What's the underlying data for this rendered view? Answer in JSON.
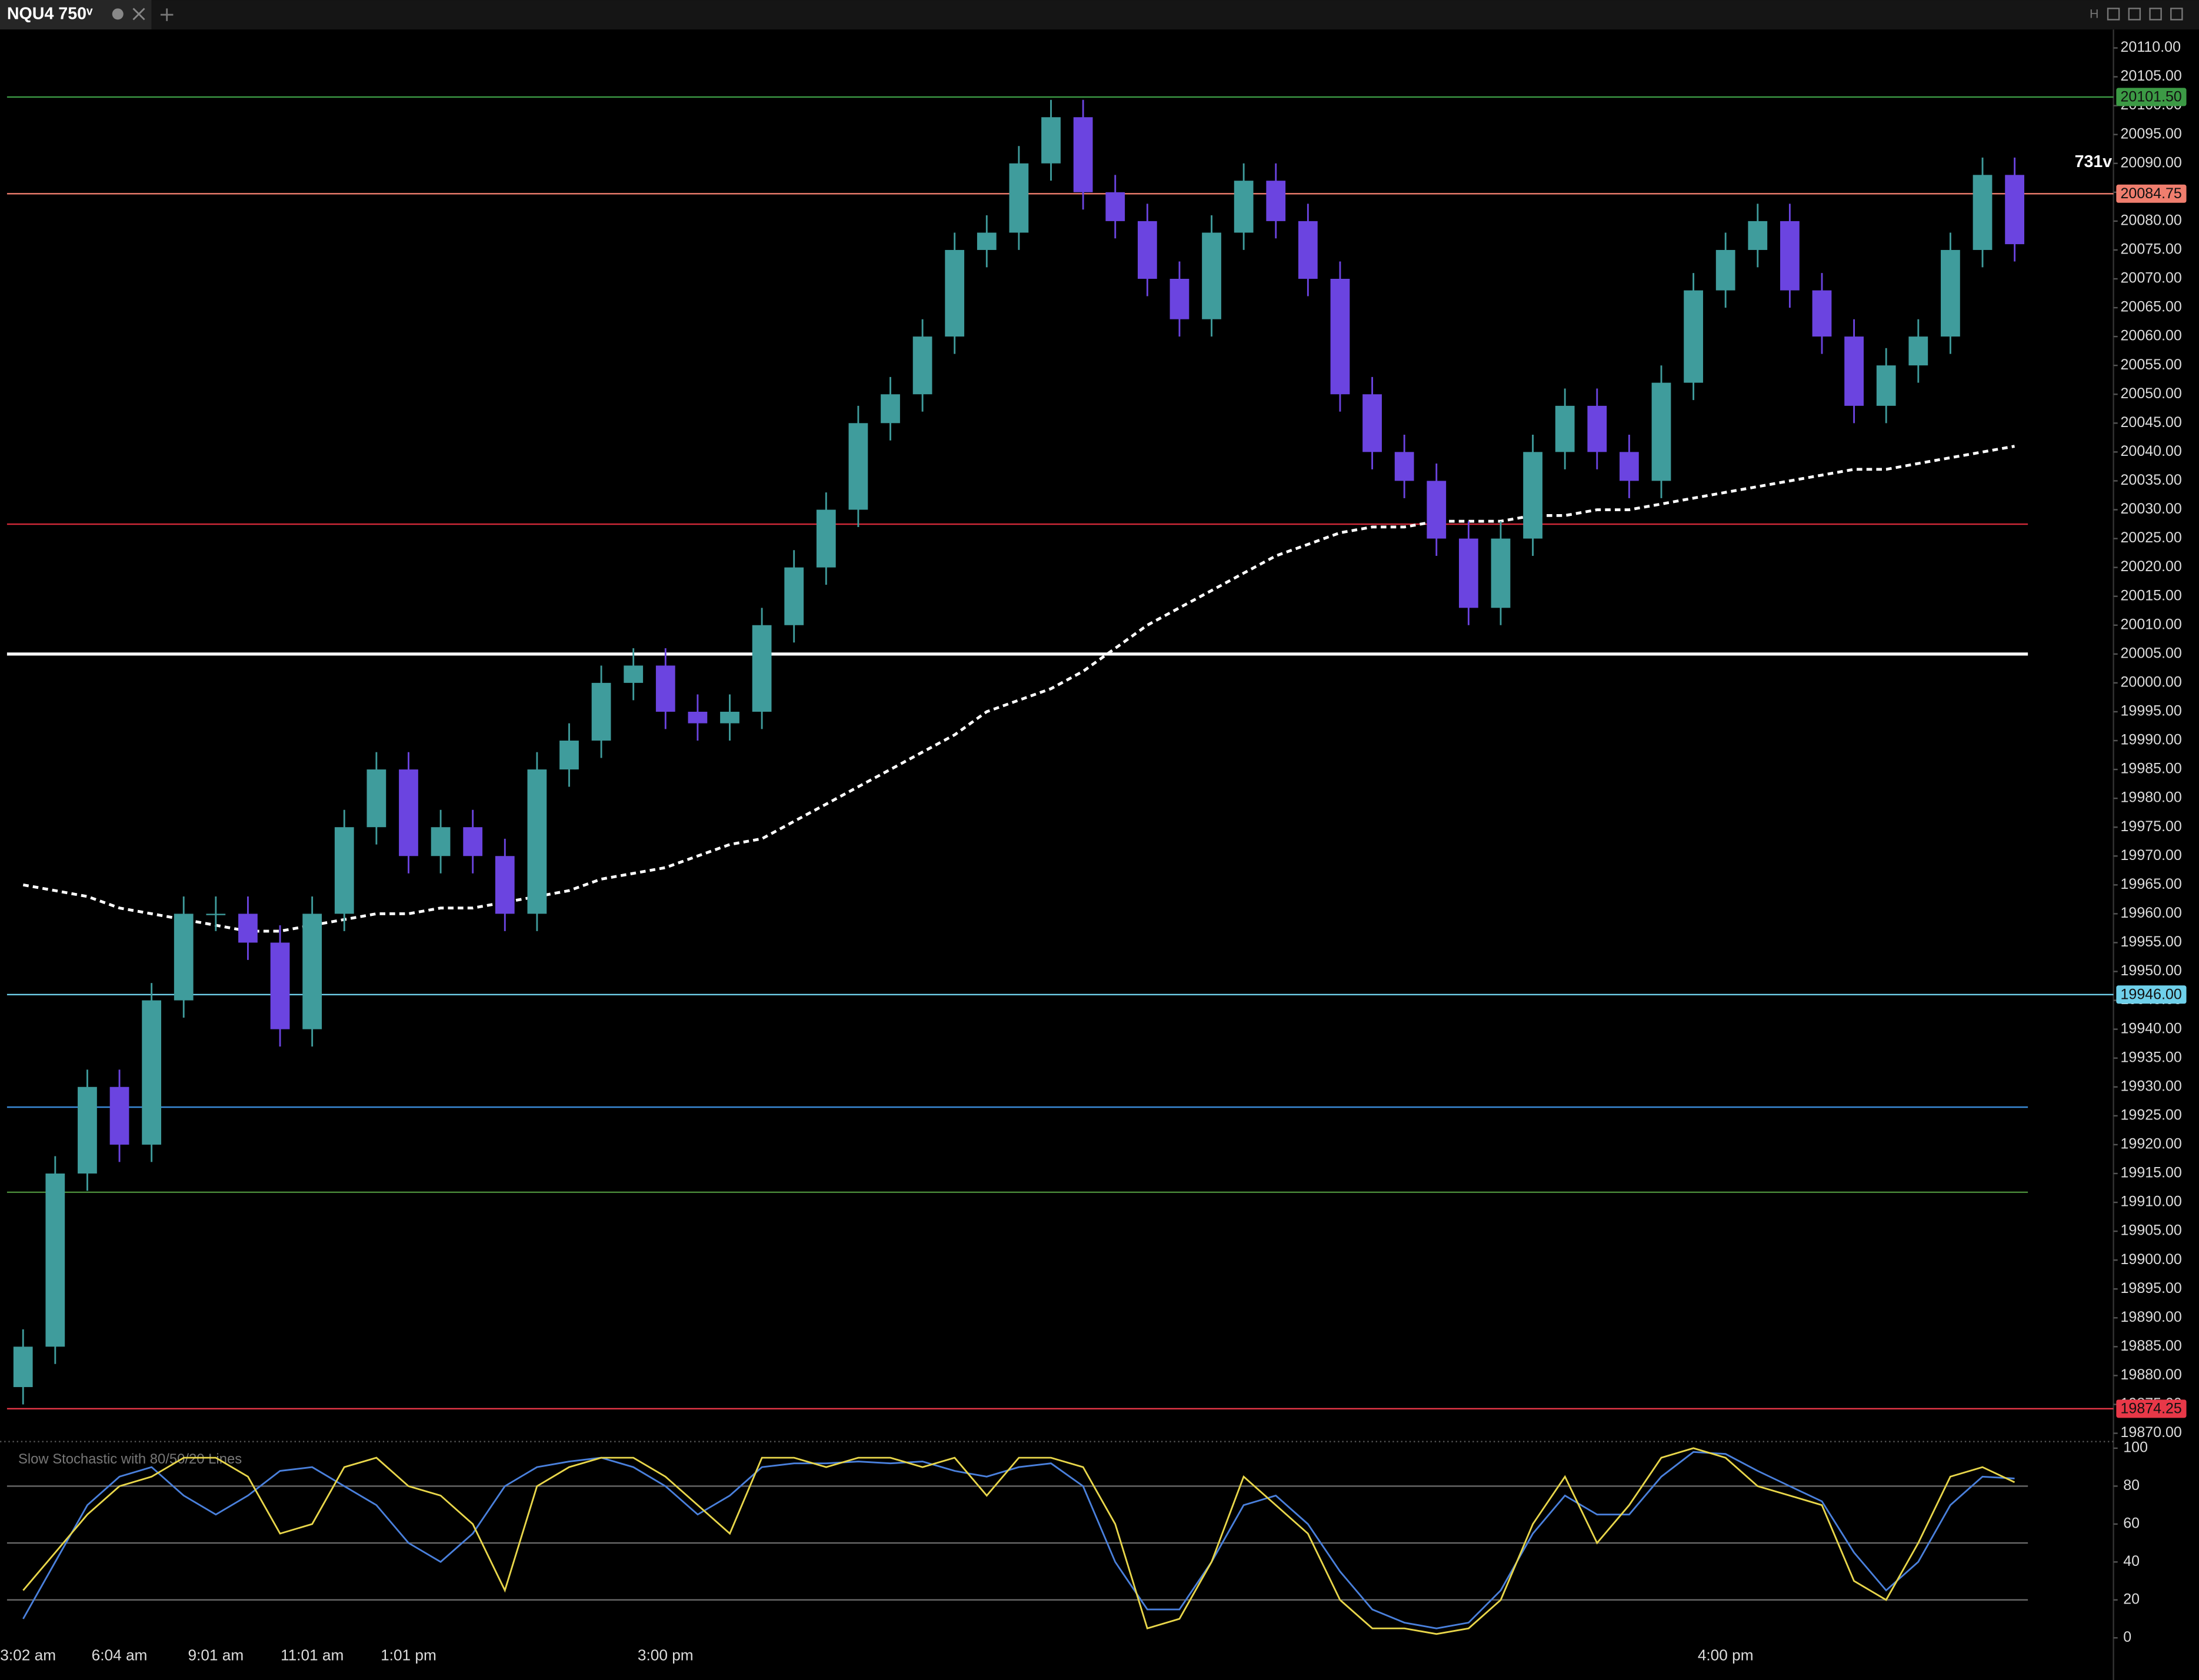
{
  "chart_data": [
    {
      "type": "candlestick",
      "title": "NQU4 750ᵛ",
      "annotation": "731v",
      "up_color": "#3f9c9c",
      "down_color": "#6b44e0",
      "candles": {
        "open": [
          19878,
          19885,
          19915,
          19930,
          19920,
          19945,
          19960,
          19960,
          19955,
          19940,
          19960,
          19975,
          19985,
          19970,
          19975,
          19970,
          19960,
          19985,
          19990,
          20000,
          20003,
          19995,
          19993,
          19995,
          20010,
          20020,
          20030,
          20045,
          20050,
          20060,
          20075,
          20078,
          20090,
          20098,
          20085,
          20080,
          20070,
          20063,
          20078,
          20087,
          20080,
          20070,
          20050,
          20040,
          20035,
          20025,
          20013,
          20025,
          20040,
          20048,
          20040,
          20035,
          20052,
          20068,
          20075,
          20080,
          20068,
          20060,
          20048,
          20055,
          20060,
          20075,
          20088
        ],
        "high": [
          19888,
          19918,
          19933,
          19933,
          19948,
          19963,
          19963,
          19963,
          19958,
          19963,
          19978,
          19988,
          19988,
          19978,
          19978,
          19973,
          19988,
          19993,
          20003,
          20006,
          20006,
          19998,
          19998,
          20013,
          20023,
          20033,
          20048,
          20053,
          20063,
          20078,
          20081,
          20093,
          20101,
          20101,
          20088,
          20083,
          20073,
          20081,
          20090,
          20090,
          20083,
          20073,
          20053,
          20043,
          20038,
          20028,
          20028,
          20043,
          20051,
          20051,
          20043,
          20055,
          20071,
          20078,
          20083,
          20083,
          20071,
          20063,
          20058,
          20063,
          20078,
          20091,
          20091
        ],
        "low": [
          19875,
          19882,
          19912,
          19917,
          19917,
          19942,
          19957,
          19952,
          19937,
          19937,
          19957,
          19972,
          19967,
          19967,
          19967,
          19957,
          19957,
          19982,
          19987,
          19997,
          19992,
          19990,
          19990,
          19992,
          20007,
          20017,
          20027,
          20042,
          20047,
          20057,
          20072,
          20075,
          20087,
          20082,
          20077,
          20067,
          20060,
          20060,
          20075,
          20077,
          20067,
          20047,
          20037,
          20032,
          20022,
          20010,
          20010,
          20022,
          20037,
          20037,
          20032,
          20032,
          20049,
          20065,
          20072,
          20065,
          20057,
          20045,
          20045,
          20052,
          20057,
          20072,
          20073
        ],
        "close": [
          19885,
          19915,
          19930,
          19920,
          19945,
          19960,
          19960,
          19955,
          19940,
          19960,
          19975,
          19985,
          19970,
          19975,
          19970,
          19960,
          19985,
          19990,
          20000,
          20003,
          19995,
          19993,
          19995,
          20010,
          20020,
          20030,
          20045,
          20050,
          20060,
          20075,
          20078,
          20090,
          20098,
          20085,
          20080,
          20070,
          20063,
          20078,
          20087,
          20080,
          20070,
          20050,
          20040,
          20035,
          20025,
          20013,
          20025,
          20040,
          20048,
          20040,
          20035,
          20052,
          20068,
          20075,
          20080,
          20068,
          20060,
          20048,
          20055,
          20060,
          20075,
          20088,
          20076
        ]
      },
      "overlays": [
        {
          "color": "#ffffff",
          "dashed": true,
          "values": [
            19965,
            19964,
            19963,
            19961,
            19960,
            19959,
            19958,
            19957,
            19957,
            19958,
            19959,
            19960,
            19960,
            19961,
            19961,
            19962,
            19963,
            19964,
            19966,
            19967,
            19968,
            19970,
            19972,
            19973,
            19976,
            19979,
            19982,
            19985,
            19988,
            19991,
            19995,
            19997,
            19999,
            20002,
            20006,
            20010,
            20013,
            20016,
            20019,
            20022,
            20024,
            20026,
            20027,
            20027,
            20028,
            20028,
            20028,
            20029,
            20029,
            20030,
            20030,
            20031,
            20032,
            20033,
            20034,
            20035,
            20036,
            20037,
            20037,
            20038,
            20039,
            20040,
            20041
          ]
        }
      ],
      "levels": [
        {
          "value": 20101.5,
          "color": "#3c9a45",
          "label": "20101.50"
        },
        {
          "value": 20084.75,
          "color": "#f07e6e",
          "label": "20084.75"
        },
        {
          "value": 20027.5,
          "color": "#d42a3a"
        },
        {
          "value": 20005,
          "color": "#ffffff",
          "thick": true
        },
        {
          "value": 19946,
          "color": "#6fd0ea",
          "label": "19946.00"
        },
        {
          "value": 19926.5,
          "color": "#3a8ad8"
        },
        {
          "value": 19911.75,
          "color": "#4a8a3a"
        },
        {
          "value": 19874.25,
          "color": "#e83848",
          "label": "19874.25"
        }
      ],
      "ylim": [
        19868.8,
        20113.2
      ],
      "yticks": [
        {
          "value": 19870,
          "label": "19870.00"
        },
        {
          "value": 19875,
          "label": "19875.00"
        },
        {
          "value": 19880,
          "label": "19880.00"
        },
        {
          "value": 19885,
          "label": "19885.00"
        },
        {
          "value": 19890,
          "label": "19890.00"
        },
        {
          "value": 19895,
          "label": "19895.00"
        },
        {
          "value": 19900,
          "label": "19900.00"
        },
        {
          "value": 19905,
          "label": "19905.00"
        },
        {
          "value": 19910,
          "label": "19910.00"
        },
        {
          "value": 19915,
          "label": "19915.00"
        },
        {
          "value": 19920,
          "label": "19920.00"
        },
        {
          "value": 19925,
          "label": "19925.00"
        },
        {
          "value": 19930,
          "label": "19930.00"
        },
        {
          "value": 19935,
          "label": "19935.00"
        },
        {
          "value": 19940,
          "label": "19940.00"
        },
        {
          "value": 19945,
          "label": "19945.00"
        },
        {
          "value": 19950,
          "label": "19950.00"
        },
        {
          "value": 19955,
          "label": "19955.00"
        },
        {
          "value": 19960,
          "label": "19960.00"
        },
        {
          "value": 19965,
          "label": "19965.00"
        },
        {
          "value": 19970,
          "label": "19970.00"
        },
        {
          "value": 19975,
          "label": "19975.00"
        },
        {
          "value": 19980,
          "label": "19980.00"
        },
        {
          "value": 19985,
          "label": "19985.00"
        },
        {
          "value": 19990,
          "label": "19990.00"
        },
        {
          "value": 19995,
          "label": "19995.00"
        },
        {
          "value": 20000,
          "label": "20000.00"
        },
        {
          "value": 20005,
          "label": "20005.00"
        },
        {
          "value": 20010,
          "label": "20010.00"
        },
        {
          "value": 20015,
          "label": "20015.00"
        },
        {
          "value": 20020,
          "label": "20020.00"
        },
        {
          "value": 20025,
          "label": "20025.00"
        },
        {
          "value": 20030,
          "label": "20030.00"
        },
        {
          "value": 20035,
          "label": "20035.00"
        },
        {
          "value": 20040,
          "label": "20040.00"
        },
        {
          "value": 20045,
          "label": "20045.00"
        },
        {
          "value": 20050,
          "label": "20050.00"
        },
        {
          "value": 20055,
          "label": "20055.00"
        },
        {
          "value": 20060,
          "label": "20060.00"
        },
        {
          "value": 20065,
          "label": "20065.00"
        },
        {
          "value": 20070,
          "label": "20070.00"
        },
        {
          "value": 20075,
          "label": "20075.00"
        },
        {
          "value": 20080,
          "label": "20080.00"
        },
        {
          "value": 20085,
          "label": "20085.00"
        },
        {
          "value": 20090,
          "label": "20090.00"
        },
        {
          "value": 20095,
          "label": "20095.00"
        },
        {
          "value": 20100,
          "label": "20100.00"
        },
        {
          "value": 20105,
          "label": "20105.00"
        },
        {
          "value": 20110,
          "label": "20110.00"
        }
      ],
      "xticks": [
        {
          "value": 0,
          "label": "3:02 am"
        },
        {
          "value": 3,
          "label": "6:04 am"
        },
        {
          "value": 6,
          "label": "9:01 am"
        },
        {
          "value": 9,
          "label": "11:01 am"
        },
        {
          "value": 12,
          "label": "1:01 pm"
        },
        {
          "value": 20,
          "label": "3:00 pm"
        },
        {
          "value": 53,
          "label": "4:00 pm"
        }
      ]
    },
    {
      "type": "line",
      "title": "Slow Stochastic with 80/50/20 Lines",
      "ylim": [
        -3,
        102
      ],
      "yticks": [
        0,
        20,
        40,
        60,
        80,
        100
      ],
      "lines": [
        20,
        50,
        80
      ],
      "series": [
        {
          "color": "#e8d64a",
          "values": [
            25,
            45,
            65,
            80,
            85,
            95,
            95,
            85,
            55,
            60,
            90,
            95,
            80,
            75,
            60,
            25,
            80,
            90,
            95,
            95,
            85,
            70,
            55,
            95,
            95,
            90,
            95,
            95,
            90,
            95,
            75,
            95,
            95,
            90,
            60,
            5,
            10,
            40,
            85,
            70,
            55,
            20,
            5,
            5,
            2,
            5,
            20,
            60,
            85,
            50,
            70,
            95,
            100,
            95,
            80,
            75,
            70,
            30,
            20,
            50,
            85,
            90,
            82
          ]
        },
        {
          "color": "#4a80dc",
          "values": [
            10,
            40,
            70,
            85,
            90,
            75,
            65,
            75,
            88,
            90,
            80,
            70,
            50,
            40,
            55,
            80,
            90,
            93,
            95,
            90,
            80,
            65,
            75,
            90,
            92,
            92,
            93,
            92,
            93,
            88,
            85,
            90,
            92,
            80,
            40,
            15,
            15,
            40,
            70,
            75,
            60,
            35,
            15,
            8,
            5,
            8,
            25,
            55,
            75,
            65,
            65,
            85,
            98,
            97,
            88,
            80,
            72,
            45,
            25,
            40,
            70,
            85,
            84
          ]
        }
      ]
    }
  ]
}
